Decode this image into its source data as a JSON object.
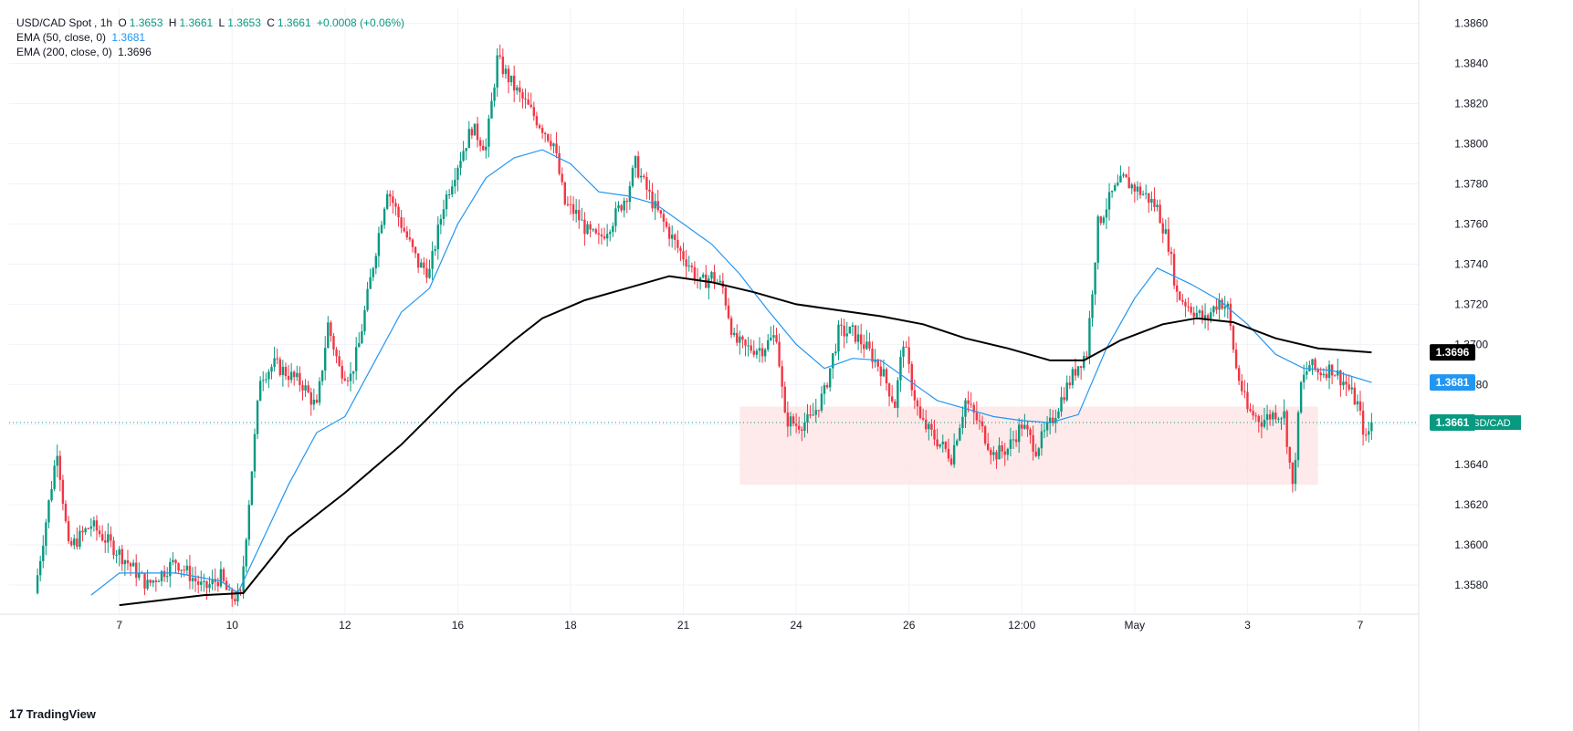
{
  "header": {
    "symbol": "USD/CAD Spot",
    "interval": "1h",
    "open_label": "O",
    "open": "1.3653",
    "high_label": "H",
    "high": "1.3661",
    "low_label": "L",
    "low": "1.3653",
    "close_label": "C",
    "close": "1.3661",
    "change": "+0.0008 (+0.06%)",
    "ema50_label": "EMA (50, close, 0)",
    "ema50_value": "1.3681",
    "ema200_label": "EMA (200, close, 0)",
    "ema200_value": "1.3696"
  },
  "branding": {
    "logo": "17",
    "name": "TradingView"
  },
  "colors": {
    "up": "#089981",
    "down": "#f23645",
    "ema50": "#2196f3",
    "ema200": "#000000",
    "zone": "#fde3e3",
    "grid": "#f0f3fa",
    "text": "#131722"
  },
  "chart_data": {
    "type": "candlestick",
    "y_ticks": [
      1.386,
      1.384,
      1.382,
      1.38,
      1.378,
      1.376,
      1.374,
      1.372,
      1.37,
      1.368,
      1.366,
      1.364,
      1.362,
      1.36,
      1.358
    ],
    "y_tick_labels": [
      "1.3860",
      "1.3840",
      "1.3820",
      "1.3800",
      "1.3780",
      "1.3760",
      "1.3740",
      "1.3720",
      "1.3700",
      "1.3680",
      "1.3660",
      "1.3640",
      "1.3620",
      "1.3600",
      "1.3580"
    ],
    "ylim": [
      1.35655,
      1.3868
    ],
    "x_tick_labels": [
      "7",
      "10",
      "12",
      "16",
      "18",
      "21",
      "24",
      "26",
      "12:00",
      "May",
      "3",
      "7"
    ],
    "x_tick_bars": [
      30,
      70,
      110,
      150,
      190,
      230,
      270,
      310,
      350,
      390,
      430,
      470
    ],
    "x_range_bars": [
      0,
      470
    ],
    "price_labels": [
      {
        "name": "EMA 200",
        "value": 1.3696,
        "text": "1.3696",
        "color": "#000000"
      },
      {
        "name": "EMA 50",
        "value": 1.3681,
        "text": "1.3681",
        "color": "#2196f3"
      },
      {
        "name": "USD/CAD",
        "value": 1.3661,
        "text": "1.3661",
        "symbol": "USD/CAD",
        "color": "#089981"
      }
    ],
    "support_zone": {
      "from_bar": 250,
      "to_bar": 455,
      "top": 1.3669,
      "bottom": 1.363
    },
    "key_points": [
      [
        0,
        1.3576
      ],
      [
        8,
        1.3648
      ],
      [
        12,
        1.3598
      ],
      [
        20,
        1.361
      ],
      [
        30,
        1.3596
      ],
      [
        40,
        1.358
      ],
      [
        50,
        1.3592
      ],
      [
        60,
        1.3578
      ],
      [
        66,
        1.3584
      ],
      [
        69,
        1.3574
      ],
      [
        73,
        1.3574
      ],
      [
        77,
        1.3638
      ],
      [
        80,
        1.3684
      ],
      [
        85,
        1.369
      ],
      [
        95,
        1.368
      ],
      [
        100,
        1.3668
      ],
      [
        104,
        1.371
      ],
      [
        108,
        1.3688
      ],
      [
        112,
        1.3684
      ],
      [
        115,
        1.37
      ],
      [
        120,
        1.374
      ],
      [
        125,
        1.3778
      ],
      [
        130,
        1.376
      ],
      [
        136,
        1.374
      ],
      [
        140,
        1.3736
      ],
      [
        145,
        1.377
      ],
      [
        150,
        1.379
      ],
      [
        155,
        1.3808
      ],
      [
        160,
        1.3798
      ],
      [
        164,
        1.3842
      ],
      [
        170,
        1.3828
      ],
      [
        175,
        1.3818
      ],
      [
        180,
        1.3808
      ],
      [
        184,
        1.38
      ],
      [
        188,
        1.377
      ],
      [
        192,
        1.3765
      ],
      [
        196,
        1.3756
      ],
      [
        200,
        1.3752
      ],
      [
        205,
        1.3762
      ],
      [
        210,
        1.3775
      ],
      [
        213,
        1.379
      ],
      [
        216,
        1.378
      ],
      [
        220,
        1.3768
      ],
      [
        224,
        1.3758
      ],
      [
        228,
        1.3748
      ],
      [
        232,
        1.374
      ],
      [
        236,
        1.373
      ],
      [
        240,
        1.3734
      ],
      [
        244,
        1.3728
      ],
      [
        248,
        1.3702
      ],
      [
        252,
        1.3698
      ],
      [
        258,
        1.3698
      ],
      [
        263,
        1.3705
      ],
      [
        266,
        1.3663
      ],
      [
        270,
        1.366
      ],
      [
        275,
        1.3662
      ],
      [
        280,
        1.3676
      ],
      [
        285,
        1.3706
      ],
      [
        290,
        1.3706
      ],
      [
        295,
        1.3698
      ],
      [
        300,
        1.3688
      ],
      [
        305,
        1.367
      ],
      [
        308,
        1.3702
      ],
      [
        311,
        1.368
      ],
      [
        314,
        1.3662
      ],
      [
        320,
        1.3652
      ],
      [
        325,
        1.3644
      ],
      [
        330,
        1.3672
      ],
      [
        335,
        1.366
      ],
      [
        340,
        1.3645
      ],
      [
        345,
        1.3648
      ],
      [
        350,
        1.366
      ],
      [
        355,
        1.3648
      ],
      [
        360,
        1.366
      ],
      [
        365,
        1.3676
      ],
      [
        370,
        1.369
      ],
      [
        373,
        1.3696
      ],
      [
        377,
        1.376
      ],
      [
        382,
        1.3775
      ],
      [
        386,
        1.3782
      ],
      [
        390,
        1.3778
      ],
      [
        394,
        1.3774
      ],
      [
        398,
        1.3768
      ],
      [
        402,
        1.375
      ],
      [
        405,
        1.3725
      ],
      [
        410,
        1.3718
      ],
      [
        415,
        1.3712
      ],
      [
        420,
        1.3722
      ],
      [
        423,
        1.3718
      ],
      [
        426,
        1.3688
      ],
      [
        430,
        1.3667
      ],
      [
        435,
        1.3662
      ],
      [
        440,
        1.3666
      ],
      [
        443,
        1.3665
      ],
      [
        446,
        1.3628
      ],
      [
        449,
        1.368
      ],
      [
        452,
        1.369
      ],
      [
        455,
        1.3686
      ],
      [
        460,
        1.3688
      ],
      [
        465,
        1.368
      ],
      [
        469,
        1.367
      ],
      [
        472,
        1.3652
      ],
      [
        474,
        1.3661
      ]
    ],
    "ema50": [
      [
        20,
        1.3575
      ],
      [
        30,
        1.3586
      ],
      [
        50,
        1.3586
      ],
      [
        66,
        1.3582
      ],
      [
        72,
        1.3576
      ],
      [
        80,
        1.36
      ],
      [
        90,
        1.363
      ],
      [
        100,
        1.3656
      ],
      [
        110,
        1.3664
      ],
      [
        120,
        1.369
      ],
      [
        130,
        1.3716
      ],
      [
        140,
        1.3728
      ],
      [
        150,
        1.376
      ],
      [
        160,
        1.3783
      ],
      [
        170,
        1.3793
      ],
      [
        180,
        1.3797
      ],
      [
        190,
        1.379
      ],
      [
        200,
        1.3776
      ],
      [
        210,
        1.3774
      ],
      [
        220,
        1.377
      ],
      [
        230,
        1.376
      ],
      [
        240,
        1.375
      ],
      [
        250,
        1.3735
      ],
      [
        260,
        1.3717
      ],
      [
        270,
        1.37
      ],
      [
        280,
        1.3688
      ],
      [
        290,
        1.3693
      ],
      [
        300,
        1.3692
      ],
      [
        310,
        1.3682
      ],
      [
        320,
        1.3672
      ],
      [
        330,
        1.3668
      ],
      [
        340,
        1.3664
      ],
      [
        350,
        1.3662
      ],
      [
        360,
        1.3661
      ],
      [
        370,
        1.3665
      ],
      [
        380,
        1.3698
      ],
      [
        390,
        1.3723
      ],
      [
        398,
        1.3738
      ],
      [
        410,
        1.373
      ],
      [
        420,
        1.3722
      ],
      [
        430,
        1.371
      ],
      [
        440,
        1.3695
      ],
      [
        450,
        1.3688
      ],
      [
        460,
        1.3687
      ],
      [
        474,
        1.3681
      ]
    ],
    "ema200": [
      [
        30,
        1.357
      ],
      [
        60,
        1.3575
      ],
      [
        74,
        1.3576
      ],
      [
        90,
        1.3604
      ],
      [
        110,
        1.3626
      ],
      [
        130,
        1.365
      ],
      [
        150,
        1.3678
      ],
      [
        170,
        1.3702
      ],
      [
        180,
        1.3713
      ],
      [
        195,
        1.3722
      ],
      [
        210,
        1.3728
      ],
      [
        225,
        1.3734
      ],
      [
        240,
        1.3731
      ],
      [
        255,
        1.3726
      ],
      [
        270,
        1.372
      ],
      [
        285,
        1.3717
      ],
      [
        300,
        1.3714
      ],
      [
        315,
        1.371
      ],
      [
        330,
        1.3703
      ],
      [
        345,
        1.3698
      ],
      [
        360,
        1.3692
      ],
      [
        372,
        1.3692
      ],
      [
        385,
        1.3702
      ],
      [
        400,
        1.371
      ],
      [
        412,
        1.3713
      ],
      [
        425,
        1.3711
      ],
      [
        440,
        1.3703
      ],
      [
        455,
        1.3698
      ],
      [
        474,
        1.3696
      ]
    ]
  }
}
